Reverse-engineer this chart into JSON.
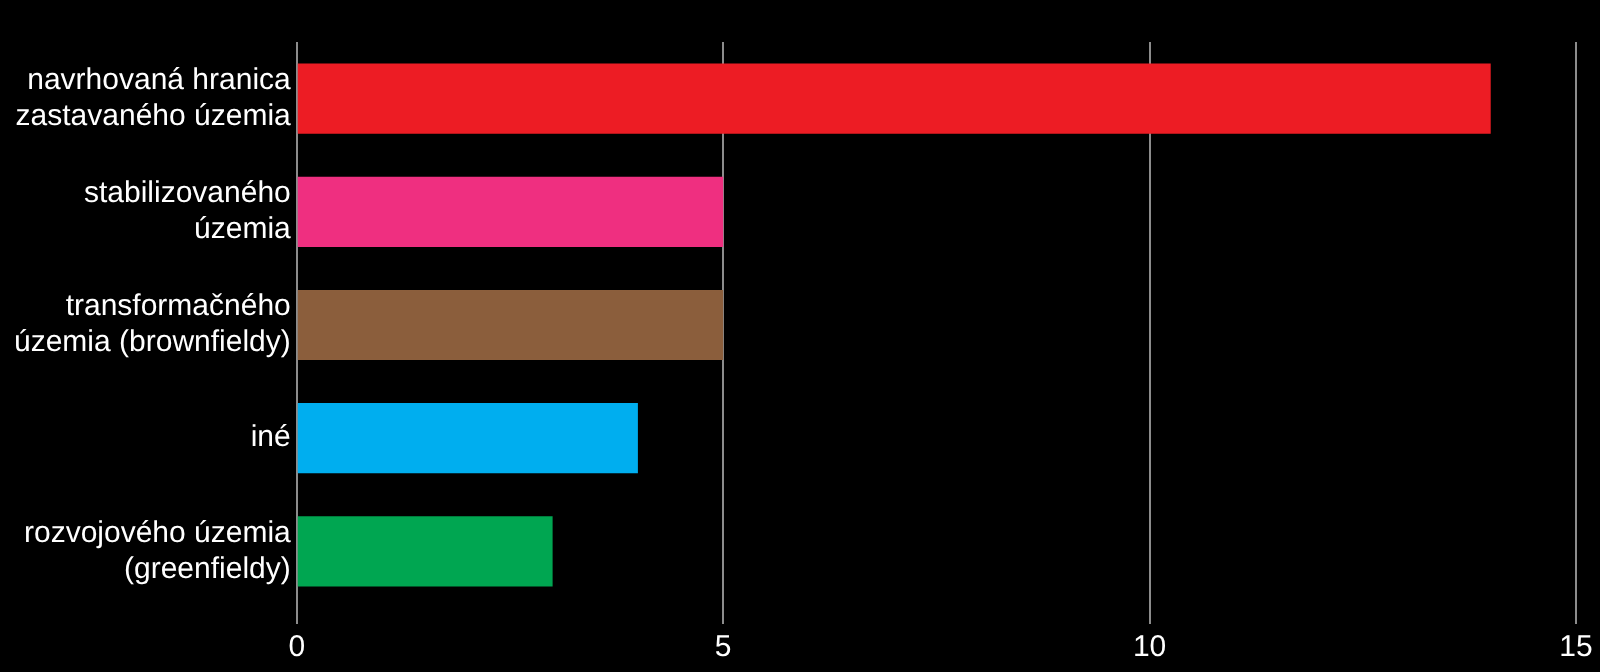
{
  "chart_data": {
    "type": "bar",
    "orientation": "horizontal",
    "categories": [
      "navrhovaná hranica zastavaného územia",
      "stabilizovaného územia",
      "transformačného územia (brownfieldy)",
      "iné",
      "rozvojového územia (greenfieldy)"
    ],
    "values": [
      14,
      5,
      5,
      4,
      3
    ],
    "colors": [
      "#ed1c24",
      "#ef2f80",
      "#8b5e3c",
      "#00aeef",
      "#00a651"
    ],
    "xlim": [
      0,
      15
    ],
    "xticks": [
      0,
      5,
      10,
      15
    ],
    "grid": "x",
    "legend": false
  }
}
